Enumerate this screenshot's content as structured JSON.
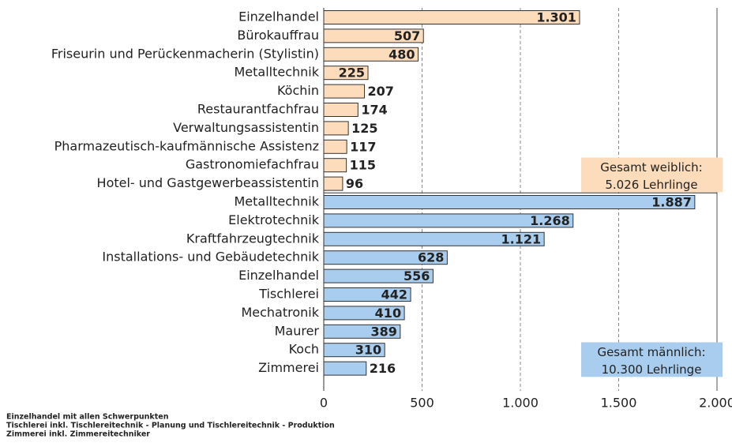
{
  "chart_data": {
    "type": "bar",
    "groups": [
      {
        "categories": [
          "Einzelhandel",
          "Bürokauffrau",
          "Friseurin und Perückenmacherin (Stylistin)",
          "Metalltechnik",
          "Köchin",
          "Restaurantfachfrau",
          "Verwaltungsassistentin",
          "Pharmazeutisch-kaufmännische Assistenz",
          "Gastronomiefachfrau",
          "Hotel- und Gastgewerbeassistentin"
        ],
        "values": [
          1301,
          507,
          480,
          225,
          207,
          174,
          125,
          117,
          115,
          96
        ],
        "value_labels": [
          "1.301",
          "507",
          "480",
          "225",
          "207",
          "174",
          "125",
          "117",
          "115",
          "96"
        ],
        "color": "#fcdcbb",
        "note": [
          "Gesamt weiblich:",
          "5.026 Lehrlinge"
        ]
      },
      {
        "categories": [
          "Metalltechnik",
          "Elektrotechnik",
          "Kraftfahrzeugtechnik",
          "Installations- und Gebäudetechnik",
          "Einzelhandel",
          "Tischlerei",
          "Mechatronik",
          "Maurer",
          "Koch",
          "Zimmerei"
        ],
        "values": [
          1887,
          1268,
          1121,
          628,
          556,
          442,
          410,
          389,
          310,
          216
        ],
        "value_labels": [
          "1.887",
          "1.268",
          "1.121",
          "628",
          "556",
          "442",
          "410",
          "389",
          "310",
          "216"
        ],
        "color": "#a8cdee",
        "note": [
          "Gesamt männlich:",
          "10.300 Lehrlinge"
        ]
      }
    ],
    "xlim": [
      0,
      2000
    ],
    "xticks": [
      0,
      500,
      {
        "value": 1000,
        "label": "1.000"
      },
      {
        "value": 1500,
        "label": "1.500"
      },
      {
        "value": 2000,
        "label": "2.000"
      }
    ],
    "grid": true,
    "footnotes": [
      "Einzelhandel mit allen Schwerpunkten",
      "Tischlerei inkl. Tischlereitechnik - Planung und Tischlereitechnik - Produktion",
      "Zimmerei inkl. Zimmereitechniker"
    ]
  }
}
